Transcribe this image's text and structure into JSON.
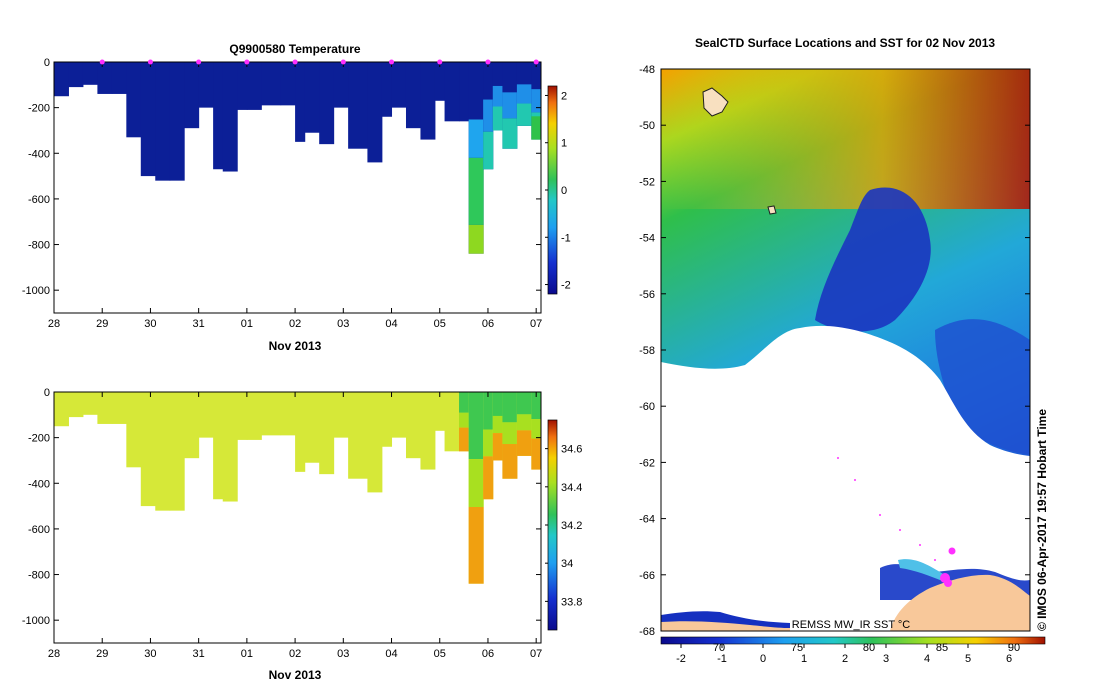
{
  "charts": {
    "temperature": {
      "type": "heatmap",
      "title": "Q9900580  Temperature",
      "xlabel": "Nov 2013",
      "ylabel": "",
      "x_ticks": [
        "28",
        "29",
        "30",
        "31",
        "01",
        "02",
        "03",
        "04",
        "05",
        "06",
        "07"
      ],
      "x_range_days": [
        28,
        38.1
      ],
      "y_ticks": [
        0,
        -200,
        -400,
        -600,
        -800,
        -1000
      ],
      "ylim": [
        -1100,
        0
      ],
      "colorbar": {
        "ticks": [
          2,
          1,
          0,
          -1,
          -2
        ],
        "range": [
          -2.2,
          2.2
        ]
      },
      "surface_markers": [
        29,
        30,
        31,
        32,
        33,
        34,
        35,
        36,
        37,
        38
      ],
      "series_colors": {
        "deep": "#0a1f96",
        "cold": "#1b40c8",
        "mid": "#1fb3e8",
        "green": "#2fc25a",
        "warm": "#a5e000"
      }
    },
    "salinity": {
      "type": "heatmap",
      "xlabel": "Nov 2013",
      "x_ticks": [
        "28",
        "29",
        "30",
        "31",
        "01",
        "02",
        "03",
        "04",
        "05",
        "06",
        "07"
      ],
      "y_ticks": [
        0,
        -200,
        -400,
        -600,
        -800,
        -1000
      ],
      "ylim": [
        -1100,
        0
      ],
      "colorbar": {
        "ticks": [
          34.6,
          34.4,
          34.2,
          34,
          33.8
        ],
        "range": [
          33.65,
          34.75
        ]
      }
    },
    "sst_map": {
      "type": "map",
      "title": "SealCTD Surface Locations and SST for 02 Nov 2013",
      "y_ticks": [
        -48,
        -50,
        -52,
        -54,
        -56,
        -58,
        -60,
        -62,
        -64,
        -66,
        -68
      ],
      "colorbar_bottom_ticks": [
        "-2",
        "-1",
        "0",
        "1",
        "2",
        "3",
        "4",
        "5",
        "6"
      ],
      "colorbar_top_ticks": [
        "70",
        "75",
        "80",
        "85",
        "90"
      ],
      "source_label": "REMSS MW_IR SST °C",
      "side_label": "© IMOS 06-Apr-2017 19:57 Hobart Time"
    }
  },
  "chart_data": [
    {
      "type": "heatmap",
      "title": "Q9900580  Temperature",
      "xlabel": "Nov 2013",
      "ylabel": "",
      "colorbar_label": "",
      "ylim": [
        -1100,
        0
      ],
      "profiles": [
        {
          "day": 28.0,
          "depth": -150
        },
        {
          "day": 28.3,
          "depth": -110
        },
        {
          "day": 28.6,
          "depth": -100
        },
        {
          "day": 28.9,
          "depth": -140
        },
        {
          "day": 29.2,
          "depth": -140
        },
        {
          "day": 29.5,
          "depth": -330
        },
        {
          "day": 29.8,
          "depth": -500
        },
        {
          "day": 30.1,
          "depth": -520
        },
        {
          "day": 30.4,
          "depth": -520
        },
        {
          "day": 30.7,
          "depth": -290
        },
        {
          "day": 31.0,
          "depth": -200
        },
        {
          "day": 31.3,
          "depth": -470
        },
        {
          "day": 31.5,
          "depth": -480
        },
        {
          "day": 31.8,
          "depth": -210
        },
        {
          "day": 32.0,
          "depth": -210
        },
        {
          "day": 32.3,
          "depth": -190
        },
        {
          "day": 32.7,
          "depth": -190
        },
        {
          "day": 33.0,
          "depth": -350
        },
        {
          "day": 33.2,
          "depth": -310
        },
        {
          "day": 33.5,
          "depth": -360
        },
        {
          "day": 33.8,
          "depth": -200
        },
        {
          "day": 34.1,
          "depth": -380
        },
        {
          "day": 34.5,
          "depth": -440
        },
        {
          "day": 34.8,
          "depth": -240
        },
        {
          "day": 35.0,
          "depth": -200
        },
        {
          "day": 35.3,
          "depth": -290
        },
        {
          "day": 35.6,
          "depth": -340
        },
        {
          "day": 35.9,
          "depth": -170
        },
        {
          "day": 36.1,
          "depth": -260
        },
        {
          "day": 36.4,
          "depth": -260
        },
        {
          "day": 36.6,
          "depth": -840
        },
        {
          "day": 36.9,
          "depth": -470
        },
        {
          "day": 37.1,
          "depth": -300
        },
        {
          "day": 37.3,
          "depth": -380
        },
        {
          "day": 37.6,
          "depth": -280
        },
        {
          "day": 37.9,
          "depth": -340
        }
      ]
    },
    {
      "type": "heatmap",
      "title": "",
      "xlabel": "Nov 2013",
      "ylim": [
        -1100,
        0
      ],
      "colorbar_ticks": [
        33.8,
        34,
        34.2,
        34.4,
        34.6
      ]
    },
    {
      "type": "heatmap",
      "title": "SealCTD Surface Locations and SST for 02 Nov 2013",
      "xlabel": "",
      "ylabel": "",
      "ylim": [
        -68,
        -48
      ],
      "colorbar_ticks": [
        "-2",
        "-1",
        "0",
        "1",
        "2",
        "3",
        "4",
        "5",
        "6"
      ]
    }
  ]
}
